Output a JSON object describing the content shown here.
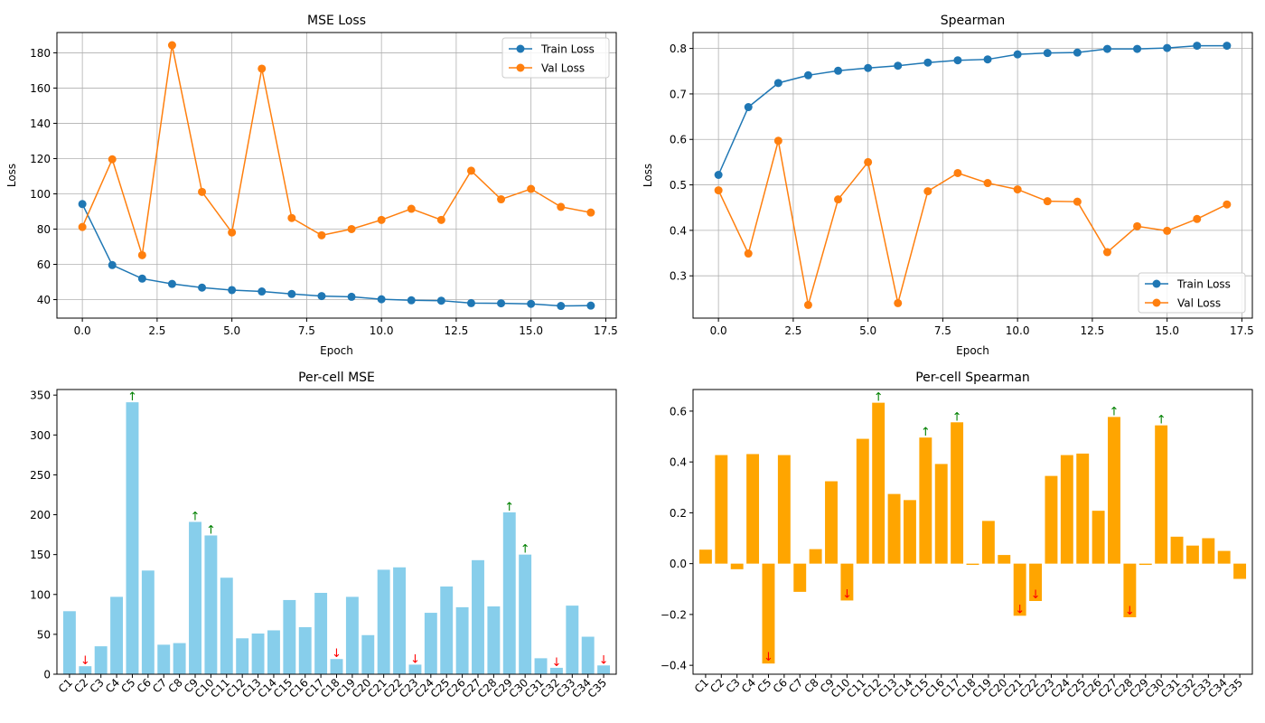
{
  "chart_data": [
    {
      "type": "line",
      "title": "MSE Loss",
      "xlabel": "Epoch",
      "ylabel": "Loss",
      "xlim": [
        -0.85,
        17.85
      ],
      "ylim": [
        29.5,
        191.5
      ],
      "xticks": [
        0,
        2.5,
        5,
        7.5,
        10,
        12.5,
        15,
        17.5
      ],
      "xtick_labels": [
        "0.0",
        "2.5",
        "5.0",
        "7.5",
        "10.0",
        "12.5",
        "15.0",
        "17.5"
      ],
      "yticks": [
        40,
        60,
        80,
        100,
        120,
        140,
        160,
        180
      ],
      "ytick_labels": [
        "40",
        "60",
        "80",
        "100",
        "120",
        "140",
        "160",
        "180"
      ],
      "grid": true,
      "legend_position": "top-right",
      "x": [
        0,
        1,
        2,
        3,
        4,
        5,
        6,
        7,
        8,
        9,
        10,
        11,
        12,
        13,
        14,
        15,
        16,
        17
      ],
      "series": [
        {
          "name": "Train Loss",
          "color": "#1f77b4",
          "values": [
            94.2,
            59.6,
            51.9,
            48.9,
            46.8,
            45.4,
            44.6,
            43.2,
            42.0,
            41.6,
            40.2,
            39.6,
            39.4,
            38.0,
            37.9,
            37.6,
            36.4,
            36.6
          ]
        },
        {
          "name": "Val Loss",
          "color": "#ff7f0e",
          "values": [
            81.2,
            119.6,
            65.2,
            184.3,
            101.1,
            78.1,
            171.0,
            86.3,
            76.5,
            80.0,
            85.2,
            91.5,
            85.2,
            113.1,
            96.9,
            102.8,
            92.6,
            89.4
          ]
        }
      ]
    },
    {
      "type": "line",
      "title": "Spearman",
      "xlabel": "Epoch",
      "ylabel": "Loss",
      "xlim": [
        -0.85,
        17.85
      ],
      "ylim": [
        0.207,
        0.835
      ],
      "xticks": [
        0,
        2.5,
        5,
        7.5,
        10,
        12.5,
        15,
        17.5
      ],
      "xtick_labels": [
        "0.0",
        "2.5",
        "5.0",
        "7.5",
        "10.0",
        "12.5",
        "15.0",
        "17.5"
      ],
      "yticks": [
        0.3,
        0.4,
        0.5,
        0.6,
        0.7,
        0.8
      ],
      "ytick_labels": [
        "0.3",
        "0.4",
        "0.5",
        "0.6",
        "0.7",
        "0.8"
      ],
      "grid": true,
      "legend_position": "bottom-right",
      "x": [
        0,
        1,
        2,
        3,
        4,
        5,
        6,
        7,
        8,
        9,
        10,
        11,
        12,
        13,
        14,
        15,
        16,
        17
      ],
      "series": [
        {
          "name": "Train Loss",
          "color": "#1f77b4",
          "values": [
            0.522,
            0.671,
            0.724,
            0.741,
            0.751,
            0.757,
            0.762,
            0.769,
            0.774,
            0.776,
            0.787,
            0.79,
            0.791,
            0.799,
            0.799,
            0.801,
            0.806,
            0.806
          ]
        },
        {
          "name": "Val Loss",
          "color": "#ff7f0e",
          "values": [
            0.488,
            0.349,
            0.597,
            0.236,
            0.468,
            0.55,
            0.24,
            0.486,
            0.526,
            0.504,
            0.49,
            0.464,
            0.463,
            0.352,
            0.409,
            0.399,
            0.425,
            0.457
          ]
        }
      ]
    },
    {
      "type": "bar",
      "title": "Per-cell MSE",
      "xlabel": "",
      "ylabel": "",
      "color": "#87ceeb",
      "ylim": [
        0,
        357
      ],
      "yticks": [
        0,
        50,
        100,
        150,
        200,
        250,
        300,
        350
      ],
      "ytick_labels": [
        "0",
        "50",
        "100",
        "150",
        "200",
        "250",
        "300",
        "350"
      ],
      "grid": false,
      "categories": [
        "C1",
        "C2",
        "C3",
        "C4",
        "C5",
        "C6",
        "C7",
        "C8",
        "C9",
        "C10",
        "C11",
        "C12",
        "C13",
        "C14",
        "C15",
        "C16",
        "C17",
        "C18",
        "C19",
        "C20",
        "C21",
        "C22",
        "C23",
        "C24",
        "C25",
        "C26",
        "C27",
        "C28",
        "C29",
        "C30",
        "C31",
        "C32",
        "C33",
        "C34",
        "C35"
      ],
      "values": [
        79,
        10,
        35,
        97,
        341,
        130,
        37,
        39,
        191,
        174,
        121,
        45,
        51,
        55,
        93,
        59,
        102,
        19,
        97,
        49,
        131,
        134,
        12,
        77,
        110,
        84,
        143,
        85,
        203,
        150,
        20,
        8,
        86,
        47,
        11
      ],
      "up_arrow_color": "#008000",
      "down_arrow_color": "#ff0000",
      "markers": {
        "up": "↑",
        "down": "↓"
      },
      "up_marked": [
        "C5",
        "C9",
        "C10",
        "C29",
        "C30"
      ],
      "down_marked": [
        "C2",
        "C18",
        "C23",
        "C32",
        "C35"
      ]
    },
    {
      "type": "bar",
      "title": "Per-cell Spearman",
      "xlabel": "",
      "ylabel": "",
      "color": "#ffa500",
      "ylim": [
        -0.435,
        0.685
      ],
      "yticks": [
        -0.4,
        -0.2,
        0.0,
        0.2,
        0.4,
        0.6
      ],
      "ytick_labels": [
        "−0.4",
        "−0.2",
        "0.0",
        "0.2",
        "0.4",
        "0.6"
      ],
      "grid": false,
      "categories": [
        "C1",
        "C2",
        "C3",
        "C4",
        "C5",
        "C6",
        "C7",
        "C8",
        "C9",
        "C10",
        "C11",
        "C12",
        "C13",
        "C14",
        "C15",
        "C16",
        "C17",
        "C18",
        "C19",
        "C20",
        "C21",
        "C22",
        "C23",
        "C24",
        "C25",
        "C26",
        "C27",
        "C28",
        "C29",
        "C30",
        "C31",
        "C32",
        "C33",
        "C34",
        "C35"
      ],
      "values": [
        0.055,
        0.427,
        -0.022,
        0.431,
        -0.393,
        0.427,
        -0.111,
        0.057,
        0.324,
        -0.145,
        0.491,
        0.633,
        0.274,
        0.25,
        0.496,
        0.392,
        0.556,
        -0.005,
        0.168,
        0.034,
        -0.205,
        -0.147,
        0.345,
        0.427,
        0.433,
        0.208,
        0.577,
        -0.211,
        -0.005,
        0.544,
        0.106,
        0.071,
        0.1,
        0.05,
        -0.06
      ],
      "up_arrow_color": "#008000",
      "down_arrow_color": "#ff0000",
      "markers": {
        "up": "↑",
        "down": "↓"
      },
      "up_marked": [
        "C12",
        "C15",
        "C17",
        "C27",
        "C30"
      ],
      "down_marked": [
        "C5",
        "C10",
        "C21",
        "C22",
        "C28"
      ]
    }
  ]
}
